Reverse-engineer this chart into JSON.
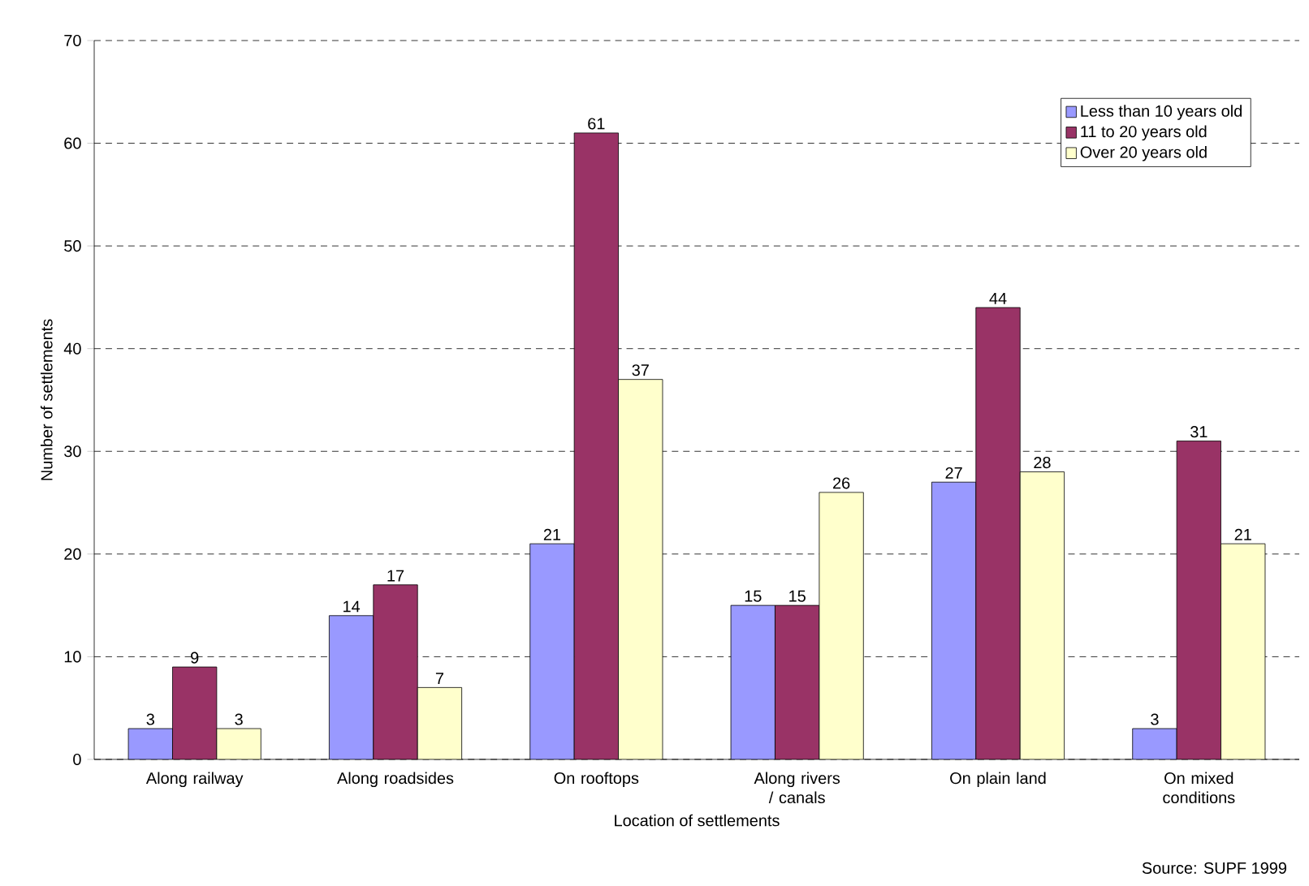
{
  "chart_data": {
    "type": "bar",
    "xlabel": "Location of settlements",
    "ylabel": "Number of settlements",
    "categories": [
      "Along railway",
      "Along roadsides",
      "On rooftops",
      "Along rivers / canals",
      "On plain land",
      "On mixed conditions"
    ],
    "series": [
      {
        "name": "Less than 10 years old",
        "color": "#9999ff",
        "values": [
          3,
          14,
          21,
          15,
          27,
          3
        ]
      },
      {
        "name": "11 to 20 years old",
        "color": "#993366",
        "values": [
          9,
          17,
          61,
          15,
          44,
          31
        ]
      },
      {
        "name": "Over 20 years old",
        "color": "#ffffcc",
        "values": [
          3,
          7,
          37,
          26,
          28,
          21
        ]
      }
    ],
    "ylim": [
      0,
      70
    ],
    "yticks": [
      0,
      10,
      20,
      30,
      40,
      50,
      60,
      70
    ],
    "grid": "y",
    "legend": "top right",
    "data_labels": true,
    "annotations": [
      "Source: SUPF 1999"
    ]
  }
}
